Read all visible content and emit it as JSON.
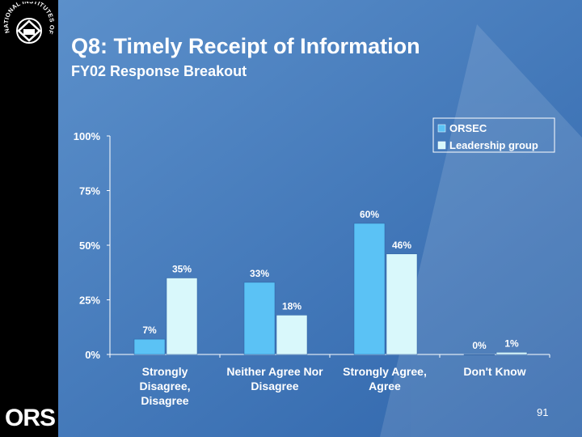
{
  "slide": {
    "title": "Q8:  Timely Receipt of Information",
    "subtitle": "FY02 Response Breakout",
    "page_number": "91",
    "sidebar_logo_text": "ORS",
    "seal_text": "NATIONAL INSTITUTES OF HEALTH"
  },
  "colors": {
    "orsec": "#5bc2f5",
    "leadership": "#d9f8fb",
    "text": "#ffffff",
    "background": "#3a71b5"
  },
  "chart_data": {
    "type": "bar",
    "title": "",
    "xlabel": "",
    "ylabel": "",
    "ylim": [
      0,
      100
    ],
    "yticks": [
      0,
      25,
      50,
      75,
      100
    ],
    "ytick_labels": [
      "0%",
      "25%",
      "50%",
      "75%",
      "100%"
    ],
    "categories": [
      [
        "Strongly",
        "Disagree,",
        "Disagree"
      ],
      [
        "Neither Agree Nor",
        "Disagree"
      ],
      [
        "Strongly Agree,",
        "Agree"
      ],
      [
        "Don't Know"
      ]
    ],
    "series": [
      {
        "name": "ORSEC",
        "values": [
          7,
          33,
          60,
          0
        ],
        "labels": [
          "7%",
          "33%",
          "60%",
          "0%"
        ]
      },
      {
        "name": "Leadership group",
        "values": [
          35,
          18,
          46,
          1
        ],
        "labels": [
          "35%",
          "18%",
          "46%",
          "1%"
        ]
      }
    ],
    "legend": "top-right",
    "grid": false
  }
}
